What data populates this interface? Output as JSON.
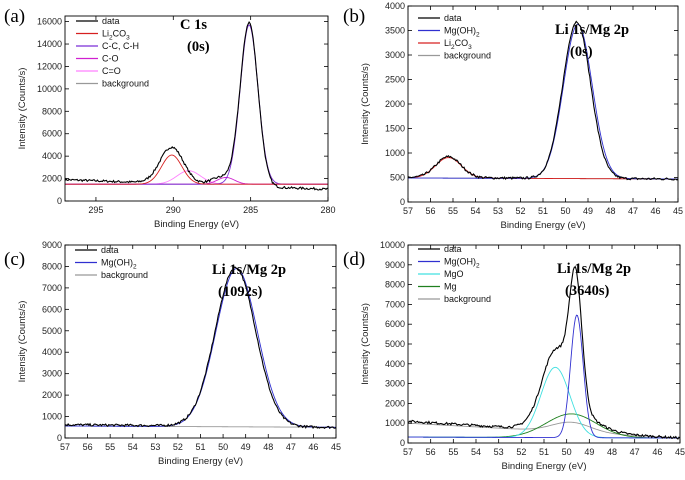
{
  "chart_data": [
    {
      "type": "line",
      "panel_label": "(a)",
      "title": "C 1s",
      "subtitle": "(0s)",
      "xlabel": "Binding Energy (eV)",
      "ylabel": "Intensity (Counts/s)",
      "xlim": [
        297,
        280
      ],
      "ylim": [
        0,
        16500
      ],
      "x_ticks": [
        295,
        290,
        285,
        280
      ],
      "x_tick_labels": [
        "295",
        "290",
        "285",
        "280"
      ],
      "y_ticks": [
        0,
        2000,
        4000,
        6000,
        8000,
        10000,
        12000,
        14000,
        16000
      ],
      "y_tick_labels": [
        "0",
        "2000",
        "4000",
        "6000",
        "8000",
        "10000",
        "12000",
        "14000",
        "16000"
      ],
      "series": [
        {
          "name": "data",
          "label_main": "data",
          "label_sub": "",
          "label_tail": "",
          "color": "#000000",
          "background": {
            "x": [
              297,
              280
            ],
            "y": [
              1900,
              1050
            ]
          },
          "peaks": [
            {
              "center": 290.1,
              "height": 3250,
              "fwhm": 1.8
            },
            {
              "center": 286.9,
              "height": 700,
              "fwhm": 1.6
            },
            {
              "center": 285.1,
              "height": 14600,
              "fwhm": 1.35
            }
          ]
        },
        {
          "name": "Li2CO3",
          "label_main": "Li",
          "label_sub": "2",
          "label_tail": "CO3",
          "color": "#d62020",
          "background": {
            "x": [
              297,
              280
            ],
            "y": [
              1500,
              1500
            ]
          },
          "peaks": [
            {
              "center": 290.1,
              "height": 2600,
              "fwhm": 1.55
            }
          ]
        },
        {
          "name": "C-C, C-H",
          "label_main": "C-C, C-H",
          "label_sub": "",
          "label_tail": "",
          "color": "#7b2fd6",
          "background": {
            "x": [
              297,
              280
            ],
            "y": [
              1500,
              1500
            ]
          },
          "peaks": [
            {
              "center": 285.1,
              "height": 14200,
              "fwhm": 1.35
            }
          ]
        },
        {
          "name": "C-O",
          "label_main": "C-O",
          "label_sub": "",
          "label_tail": "",
          "color": "#d020d0",
          "background": {
            "x": [
              297,
              280
            ],
            "y": [
              1500,
              1500
            ]
          },
          "peaks": [
            {
              "center": 286.6,
              "height": 600,
              "fwhm": 1.3
            }
          ]
        },
        {
          "name": "C=O",
          "label_main": "C=O",
          "label_sub": "",
          "label_tail": "",
          "color": "#ff80ff",
          "background": {
            "x": [
              297,
              280
            ],
            "y": [
              1500,
              1500
            ]
          },
          "peaks": [
            {
              "center": 289.0,
              "height": 1200,
              "fwhm": 1.8
            }
          ]
        },
        {
          "name": "background",
          "label_main": "background",
          "label_sub": "",
          "label_tail": "",
          "color": "#999999",
          "background": {
            "x": [
              297,
              280
            ],
            "y": [
              1500,
              1500
            ]
          },
          "peaks": []
        }
      ]
    },
    {
      "type": "line",
      "panel_label": "(b)",
      "title": "Li 1s/Mg 2p",
      "subtitle": "(0s)",
      "xlabel": "Binding Energy (eV)",
      "ylabel": "Intensity (Counts/s)",
      "xlim": [
        57,
        45
      ],
      "ylim": [
        0,
        4000
      ],
      "x_ticks": [
        57,
        56,
        55,
        54,
        53,
        52,
        51,
        50,
        49,
        48,
        47,
        46,
        45
      ],
      "x_tick_labels": [
        "57",
        "56",
        "55",
        "54",
        "53",
        "52",
        "51",
        "50",
        "49",
        "48",
        "47",
        "46",
        "45"
      ],
      "y_ticks": [
        0,
        500,
        1000,
        1500,
        2000,
        2500,
        3000,
        3500,
        4000
      ],
      "y_tick_labels": [
        "0",
        "500",
        "1000",
        "1500",
        "2000",
        "2500",
        "3000",
        "3500",
        "4000"
      ],
      "series": [
        {
          "name": "data",
          "label_main": "data",
          "label_sub": "",
          "label_tail": "",
          "color": "#000000",
          "background": {
            "x": [
              57,
              45
            ],
            "y": [
              500,
              470
            ]
          },
          "peaks": [
            {
              "center": 55.2,
              "height": 430,
              "fwhm": 1.3
            },
            {
              "center": 49.5,
              "height": 3200,
              "fwhm": 1.45
            }
          ]
        },
        {
          "name": "Mg(OH)2",
          "label_main": "Mg(OH)",
          "label_sub": "2",
          "label_tail": "",
          "color": "#3030d0",
          "background": {
            "x": [
              57,
              45
            ],
            "y": [
              490,
              470
            ]
          },
          "peaks": [
            {
              "center": 49.45,
              "height": 3150,
              "fwhm": 1.5
            }
          ]
        },
        {
          "name": "Li2CO3",
          "label_main": "Li",
          "label_sub": "2",
          "label_tail": "CO3",
          "color": "#d62020",
          "background": {
            "x": [
              57,
              45
            ],
            "y": [
              490,
              470
            ]
          },
          "peaks": [
            {
              "center": 55.2,
              "height": 420,
              "fwhm": 1.35
            }
          ]
        },
        {
          "name": "background",
          "label_main": "background",
          "label_sub": "",
          "label_tail": "",
          "color": "#999999",
          "background": {
            "x": [
              57,
              45
            ],
            "y": [
              490,
              470
            ]
          },
          "peaks": []
        }
      ]
    },
    {
      "type": "line",
      "panel_label": "(c)",
      "title": "Li 1s/Mg 2p",
      "subtitle": "(1092s)",
      "xlabel": "Binding Energy (eV)",
      "ylabel": "Intensity (Counts/s)",
      "xlim": [
        57,
        45
      ],
      "ylim": [
        0,
        9000
      ],
      "x_ticks": [
        57,
        56,
        55,
        54,
        53,
        52,
        51,
        50,
        49,
        48,
        47,
        46,
        45
      ],
      "x_tick_labels": [
        "57",
        "56",
        "55",
        "54",
        "53",
        "52",
        "51",
        "50",
        "49",
        "48",
        "47",
        "46",
        "45"
      ],
      "y_ticks": [
        0,
        1000,
        2000,
        3000,
        4000,
        5000,
        6000,
        7000,
        8000,
        9000
      ],
      "y_tick_labels": [
        "0",
        "1000",
        "2000",
        "3000",
        "4000",
        "5000",
        "6000",
        "7000",
        "8000",
        "9000"
      ],
      "series": [
        {
          "name": "data",
          "label_main": "data",
          "label_sub": "",
          "label_tail": "",
          "color": "#000000",
          "background": {
            "x": [
              57,
              45
            ],
            "y": [
              620,
              500
            ]
          },
          "peaks": [
            {
              "center": 49.45,
              "height": 7400,
              "fwhm": 2.1
            }
          ]
        },
        {
          "name": "Mg(OH)2",
          "label_main": "Mg(OH)",
          "label_sub": "2",
          "label_tail": "",
          "color": "#3030d0",
          "background": {
            "x": [
              57,
              45
            ],
            "y": [
              560,
              500
            ]
          },
          "peaks": [
            {
              "center": 49.4,
              "height": 7380,
              "fwhm": 2.15
            }
          ]
        },
        {
          "name": "background",
          "label_main": "background",
          "label_sub": "",
          "label_tail": "",
          "color": "#999999",
          "background": {
            "x": [
              57,
              45
            ],
            "y": [
              560,
              500
            ]
          },
          "peaks": []
        }
      ]
    },
    {
      "type": "line",
      "panel_label": "(d)",
      "title": "Li 1s/Mg 2p",
      "subtitle": "(3640s)",
      "xlabel": "Binding Energy (eV)",
      "ylabel": "Intensity (Counts/s)",
      "xlim": [
        57,
        45
      ],
      "ylim": [
        0,
        10000
      ],
      "x_ticks": [
        57,
        56,
        55,
        54,
        53,
        52,
        51,
        50,
        49,
        48,
        47,
        46,
        45
      ],
      "x_tick_labels": [
        "57",
        "56",
        "55",
        "54",
        "53",
        "52",
        "51",
        "50",
        "49",
        "48",
        "47",
        "46",
        "45"
      ],
      "y_ticks": [
        0,
        1000,
        2000,
        3000,
        4000,
        5000,
        6000,
        7000,
        8000,
        9000,
        10000
      ],
      "y_tick_labels": [
        "0",
        "1000",
        "2000",
        "3000",
        "4000",
        "5000",
        "6000",
        "7000",
        "8000",
        "9000",
        "10000"
      ],
      "series": [
        {
          "name": "data",
          "label_main": "data",
          "label_sub": "",
          "label_tail": "",
          "color": "#000000",
          "background": {
            "x": [
              57,
              45
            ],
            "y": [
              1100,
              250
            ]
          },
          "peaks": [
            {
              "center": 50.5,
              "height": 3300,
              "fwhm": 1.4
            },
            {
              "center": 49.6,
              "height": 6200,
              "fwhm": 0.65
            },
            {
              "center": 49.8,
              "height": 1000,
              "fwhm": 2.4
            }
          ]
        },
        {
          "name": "Mg(OH)2",
          "label_main": "Mg(OH)",
          "label_sub": "2",
          "label_tail": "",
          "color": "#3030d0",
          "background": {
            "x": [
              57,
              45
            ],
            "y": [
              300,
              250
            ]
          },
          "peaks": [
            {
              "center": 49.55,
              "height": 6200,
              "fwhm": 0.65
            }
          ]
        },
        {
          "name": "MgO",
          "label_main": "MgO",
          "label_sub": "",
          "label_tail": "",
          "color": "#40e0e0",
          "background": {
            "x": [
              57,
              45
            ],
            "y": [
              300,
              250
            ]
          },
          "peaks": [
            {
              "center": 50.5,
              "height": 3550,
              "fwhm": 1.5
            }
          ]
        },
        {
          "name": "Mg",
          "label_main": "Mg",
          "label_sub": "",
          "label_tail": "",
          "color": "#208020",
          "background": {
            "x": [
              57,
              45
            ],
            "y": [
              300,
              250
            ]
          },
          "peaks": [
            {
              "center": 49.8,
              "height": 1200,
              "fwhm": 2.6
            }
          ]
        },
        {
          "name": "background",
          "label_main": "background",
          "label_sub": "",
          "label_tail": "",
          "color": "#999999",
          "background": {
            "x": [
              57,
              45
            ],
            "y": [
              1000,
              250
            ]
          },
          "peaks": [
            {
              "center": 49.8,
              "height": 500,
              "fwhm": 2.0
            }
          ]
        }
      ]
    }
  ]
}
